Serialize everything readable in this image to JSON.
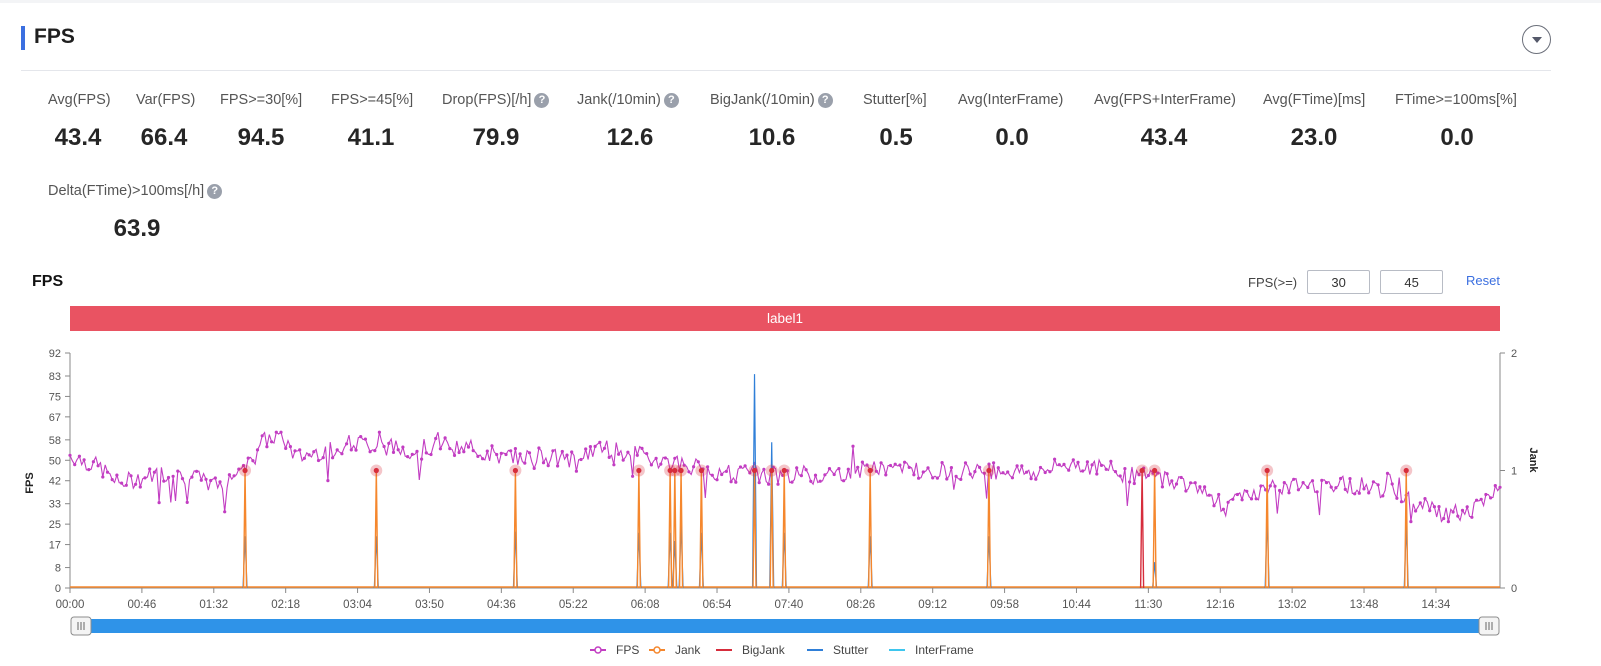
{
  "section": {
    "title": "FPS"
  },
  "metrics": [
    {
      "label": "Avg(FPS)",
      "value": "43.4",
      "help": false
    },
    {
      "label": "Var(FPS)",
      "value": "66.4",
      "help": false
    },
    {
      "label": "FPS>=30[%]",
      "value": "94.5",
      "help": false
    },
    {
      "label": "FPS>=45[%]",
      "value": "41.1",
      "help": false
    },
    {
      "label": "Drop(FPS)[/h]",
      "value": "79.9",
      "help": true
    },
    {
      "label": "Jank(/10min)",
      "value": "12.6",
      "help": true
    },
    {
      "label": "BigJank(/10min)",
      "value": "10.6",
      "help": true
    },
    {
      "label": "Stutter[%]",
      "value": "0.5",
      "help": false
    },
    {
      "label": "Avg(InterFrame)",
      "value": "0.0",
      "help": false
    },
    {
      "label": "Avg(FPS+InterFrame)",
      "value": "43.4",
      "help": false
    },
    {
      "label": "Avg(FTime)[ms]",
      "value": "23.0",
      "help": false
    },
    {
      "label": "FTime>=100ms[%]",
      "value": "0.0",
      "help": false
    },
    {
      "label": "Delta(FTime)>100ms[/h]",
      "value": "63.9",
      "help": true
    }
  ],
  "help_glyph": "?",
  "chart_panel": {
    "title": "FPS",
    "threshold_label": "FPS(>=)",
    "threshold_low": "30",
    "threshold_high": "45",
    "reset_label": "Reset",
    "band_label": "label1"
  },
  "colors": {
    "fps": "#c23dc2",
    "jank": "#f5872d",
    "bigjank": "#d62d3c",
    "stutter": "#2f7fd8",
    "interframe": "#3ec6ee",
    "band": "#e95362",
    "accent": "#3b6fe0"
  },
  "chart_data": {
    "type": "line",
    "y_left": {
      "label": "FPS",
      "ticks": [
        "0",
        "8",
        "17",
        "25",
        "33",
        "42",
        "50",
        "58",
        "67",
        "75",
        "83",
        "92"
      ],
      "range": [
        0,
        92
      ]
    },
    "y_right": {
      "label": "Jank",
      "ticks": [
        "0",
        "1",
        "2"
      ],
      "range": [
        0,
        2
      ]
    },
    "x_ticks": [
      "00:00",
      "00:46",
      "01:32",
      "02:18",
      "03:04",
      "03:50",
      "04:36",
      "05:22",
      "06:08",
      "06:54",
      "07:40",
      "08:26",
      "09:12",
      "09:58",
      "10:44",
      "11:30",
      "12:16",
      "13:02",
      "13:48",
      "14:34"
    ],
    "x_range_seconds": [
      0,
      915
    ],
    "fps_profile": {
      "t": [
        0,
        20,
        30,
        60,
        80,
        95,
        110,
        118,
        125,
        135,
        145,
        180,
        220,
        240,
        260,
        280,
        300,
        320,
        340,
        380,
        420,
        450,
        480,
        520,
        560,
        580,
        600,
        620,
        640,
        660,
        680,
        700,
        720,
        740,
        760,
        800,
        830,
        850,
        860,
        880,
        900,
        915
      ],
      "fps": [
        52,
        47,
        41,
        45,
        43,
        40,
        47,
        54,
        58,
        60,
        51,
        57,
        54,
        56,
        54,
        51,
        52,
        50,
        55,
        50,
        45,
        44,
        44,
        47,
        46,
        46,
        46,
        45,
        49,
        47,
        44,
        43,
        40,
        32,
        38,
        41,
        40,
        37,
        33,
        29,
        31,
        40
      ]
    },
    "jank_events": [
      {
        "t": 112,
        "jank": 1,
        "bigjank": 0,
        "stutter": 0.44
      },
      {
        "t": 196,
        "jank": 1,
        "bigjank": 0,
        "stutter": 0.44
      },
      {
        "t": 285,
        "jank": 1,
        "bigjank": 0,
        "stutter": 0.48
      },
      {
        "t": 364,
        "jank": 1,
        "bigjank": 0,
        "stutter": 0.47
      },
      {
        "t": 384,
        "jank": 1,
        "bigjank": 0,
        "stutter": 0.47
      },
      {
        "t": 387,
        "jank": 1,
        "bigjank": 0,
        "stutter": 0.4
      },
      {
        "t": 391,
        "jank": 1,
        "bigjank": 0,
        "stutter": 0.55
      },
      {
        "t": 404,
        "jank": 1,
        "bigjank": 0,
        "stutter": 0.47
      },
      {
        "t": 438,
        "jank": 1,
        "bigjank": 0,
        "stutter": 1.82
      },
      {
        "t": 449,
        "jank": 1,
        "bigjank": 0,
        "stutter": 1.24
      },
      {
        "t": 457,
        "jank": 1,
        "bigjank": 0,
        "stutter": 0.47
      },
      {
        "t": 512,
        "jank": 1,
        "bigjank": 0,
        "stutter": 0.44
      },
      {
        "t": 588,
        "jank": 1,
        "bigjank": 0,
        "stutter": 0.44
      },
      {
        "t": 686,
        "jank": 1,
        "bigjank": 1,
        "stutter": 0
      },
      {
        "t": 694,
        "jank": 1,
        "bigjank": 0,
        "stutter": 0.22
      },
      {
        "t": 766,
        "jank": 1,
        "bigjank": 0,
        "stutter": 0.6
      },
      {
        "t": 855,
        "jank": 1,
        "bigjank": 0,
        "stutter": 0.54
      }
    ],
    "legend": [
      {
        "name": "FPS",
        "key": "fps"
      },
      {
        "name": "Jank",
        "key": "jank"
      },
      {
        "name": "BigJank",
        "key": "bigjank"
      },
      {
        "name": "Stutter",
        "key": "stutter"
      },
      {
        "name": "InterFrame",
        "key": "interframe"
      }
    ],
    "legend_position": "bottom"
  }
}
